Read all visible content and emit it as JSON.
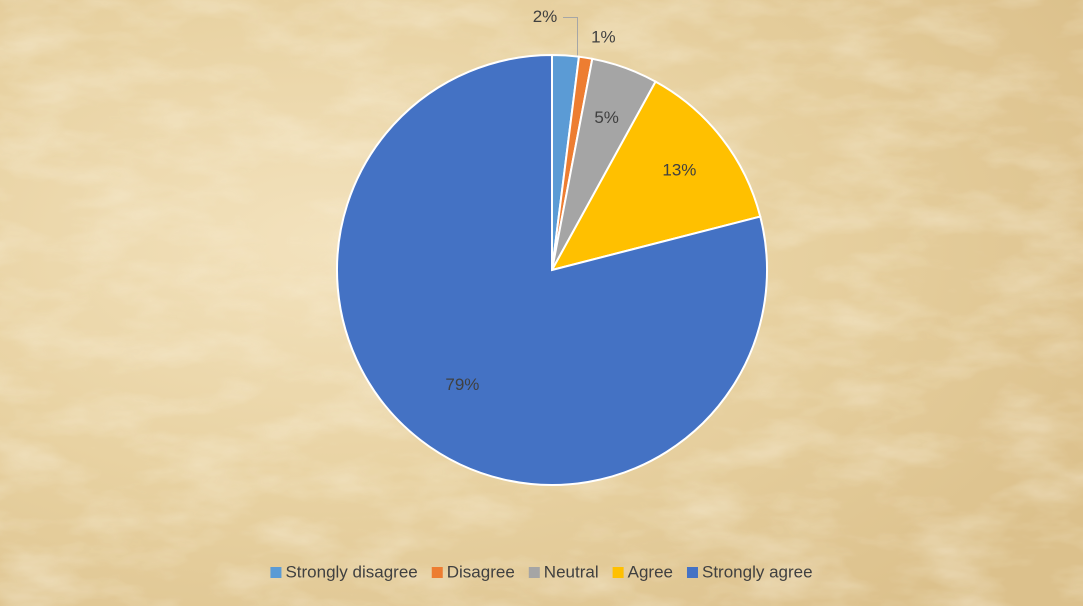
{
  "chart_data": {
    "type": "pie",
    "categories": [
      "Strongly disagree",
      "Disagree",
      "Neutral",
      "Agree",
      "Strongly agree"
    ],
    "values": [
      2,
      1,
      5,
      13,
      79
    ],
    "value_labels": [
      "2%",
      "1%",
      "5%",
      "13%",
      "79%"
    ],
    "colors": [
      "#5b9bd5",
      "#ed7d31",
      "#a5a5a5",
      "#ffc000",
      "#4472c4"
    ],
    "legend": "bottom"
  }
}
